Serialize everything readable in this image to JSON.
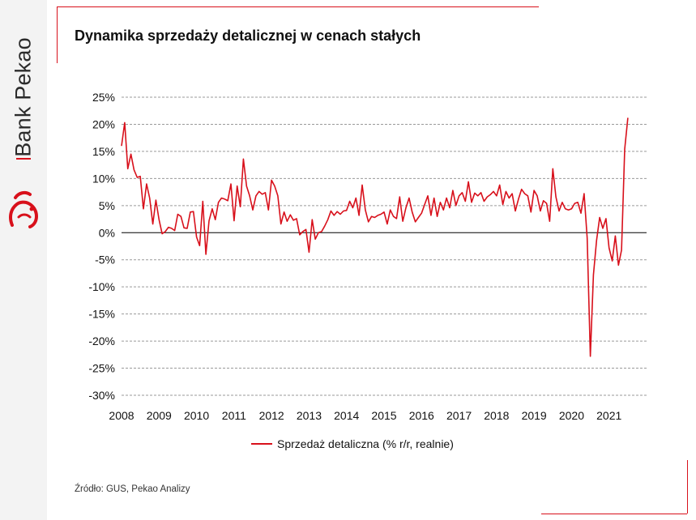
{
  "brand": {
    "name": "Bank Pekao",
    "logo": "bison-logo-icon",
    "accent": "#d8101b"
  },
  "title": "Dynamika sprzedaży detalicznej w cenach stałych",
  "source": "Źródło: GUS, Pekao Analizy",
  "chart_data": {
    "type": "line",
    "title": "Dynamika sprzedaży detalicznej w cenach stałych",
    "xlabel": "",
    "ylabel": "",
    "ylim": [
      -30,
      25
    ],
    "y_ticks": [
      25,
      20,
      15,
      10,
      5,
      0,
      -5,
      -10,
      -15,
      -20,
      -25,
      -30
    ],
    "y_tick_labels": [
      "25%",
      "20%",
      "15%",
      "10%",
      "5%",
      "0%",
      "-5%",
      "-10%",
      "-15%",
      "-20%",
      "-25%",
      "-30%"
    ],
    "x_tick_labels": [
      "2008",
      "2009",
      "2010",
      "2011",
      "2012",
      "2013",
      "2014",
      "2015",
      "2016",
      "2017",
      "2018",
      "2019",
      "2020",
      "2021"
    ],
    "x_start": "2008-01",
    "frequency": "monthly",
    "grid": "horizontal dashed",
    "legend_position": "bottom",
    "color": "#d8101b",
    "series": [
      {
        "name": "Sprzedaż detaliczna (% r/r, realnie)",
        "values": [
          16.0,
          20.3,
          11.8,
          14.5,
          11.6,
          10.2,
          10.4,
          4.4,
          9.0,
          6.4,
          1.6,
          6.0,
          2.4,
          -0.2,
          0.2,
          1.0,
          0.8,
          0.4,
          3.4,
          3.0,
          0.9,
          0.8,
          3.8,
          3.9,
          -0.8,
          -2.4,
          5.8,
          -4.0,
          2.2,
          4.4,
          2.4,
          5.6,
          6.4,
          6.2,
          5.9,
          9.0,
          2.2,
          8.6,
          4.8,
          13.6,
          8.6,
          6.8,
          4.2,
          6.8,
          7.6,
          7.1,
          7.4,
          4.2,
          9.7,
          8.6,
          6.8,
          1.6,
          3.8,
          2.1,
          3.3,
          2.3,
          2.6,
          -0.4,
          0.2,
          0.6,
          -3.6,
          2.4,
          -1.2,
          0.0,
          0.2,
          1.2,
          2.4,
          4.0,
          3.2,
          3.9,
          3.4,
          4.0,
          4.1,
          5.8,
          4.6,
          6.4,
          3.2,
          8.8,
          4.2,
          2.0,
          3.0,
          2.8,
          3.2,
          3.4,
          3.8,
          1.6,
          4.2,
          3.0,
          2.6,
          6.6,
          2.1,
          4.6,
          6.4,
          3.8,
          2.0,
          2.8,
          3.6,
          5.2,
          6.8,
          3.2,
          6.4,
          3.0,
          5.6,
          4.2,
          6.4,
          4.6,
          7.8,
          5.0,
          6.8,
          7.4,
          5.8,
          9.4,
          5.6,
          7.3,
          6.8,
          7.4,
          5.8,
          6.6,
          7.0,
          7.6,
          6.8,
          8.8,
          5.2,
          7.6,
          6.4,
          7.2,
          4.0,
          6.2,
          8.0,
          7.2,
          6.8,
          3.8,
          7.8,
          6.8,
          4.0,
          5.9,
          5.4,
          2.1,
          11.8,
          6.6,
          4.0,
          5.6,
          4.4,
          4.2,
          4.4,
          5.4,
          5.6,
          3.6,
          7.2,
          -1.0,
          -22.8,
          -7.8,
          -1.4,
          2.8,
          0.8,
          2.6,
          -2.8,
          -5.2,
          -0.6,
          -6.0,
          -3.2,
          15.4,
          21.2
        ]
      }
    ]
  }
}
